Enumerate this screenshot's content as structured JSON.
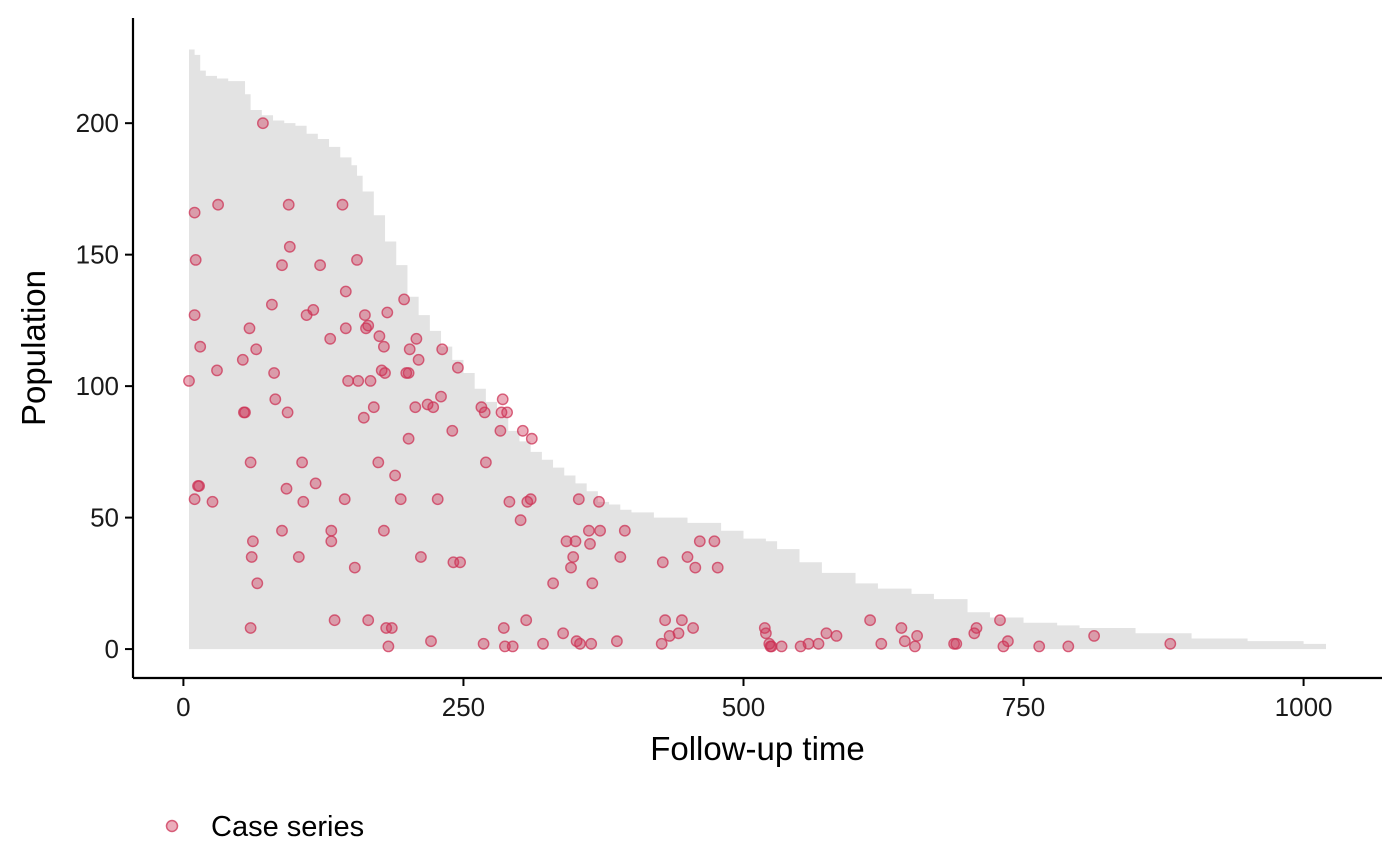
{
  "chart_data": {
    "type": "scatter",
    "title": "",
    "xlabel": "Follow-up time",
    "ylabel": "Population",
    "xlim": [
      -45,
      1070
    ],
    "ylim": [
      -11,
      240
    ],
    "x_ticks": [
      0,
      250,
      500,
      750,
      1000
    ],
    "y_ticks": [
      0,
      50,
      100,
      150,
      200
    ],
    "grid": false,
    "legend_position": "bottom-left",
    "colors": {
      "points": "#cc3355",
      "population_area": "#e3e3e3",
      "axis": "#000000"
    },
    "population_at_risk": {
      "x": [
        5,
        10,
        15,
        20,
        30,
        40,
        50,
        55,
        60,
        70,
        80,
        90,
        100,
        110,
        120,
        130,
        140,
        150,
        155,
        160,
        170,
        180,
        190,
        200,
        210,
        220,
        230,
        240,
        250,
        260,
        270,
        280,
        290,
        300,
        310,
        320,
        330,
        340,
        350,
        360,
        370,
        380,
        390,
        400,
        420,
        450,
        480,
        500,
        520,
        530,
        550,
        570,
        600,
        620,
        650,
        670,
        700,
        720,
        750,
        780,
        800,
        850,
        900,
        950,
        1000,
        1020
      ],
      "y": [
        228,
        226,
        220,
        218,
        217,
        216,
        216,
        211,
        205,
        203,
        201,
        200,
        199,
        196,
        194,
        191,
        187,
        184,
        180,
        174,
        165,
        155,
        146,
        134,
        127,
        121,
        115,
        110,
        105,
        99,
        94,
        88,
        83,
        79,
        75,
        72,
        69,
        66,
        63,
        60,
        56,
        55,
        53,
        52,
        50,
        48,
        45,
        42,
        41,
        38,
        33,
        29,
        25,
        23,
        21,
        19,
        14,
        12,
        10,
        9,
        8,
        6,
        4,
        3,
        2,
        1
      ]
    },
    "series": [
      {
        "name": "Case series",
        "points": [
          [
            5,
            102
          ],
          [
            10,
            166
          ],
          [
            10,
            127
          ],
          [
            11,
            148
          ],
          [
            10,
            57
          ],
          [
            13,
            62
          ],
          [
            14,
            62
          ],
          [
            15,
            115
          ],
          [
            26,
            56
          ],
          [
            30,
            106
          ],
          [
            31,
            169
          ],
          [
            53,
            110
          ],
          [
            54,
            90
          ],
          [
            55,
            90
          ],
          [
            59,
            122
          ],
          [
            60,
            71
          ],
          [
            61,
            35
          ],
          [
            62,
            41
          ],
          [
            60,
            8
          ],
          [
            65,
            114
          ],
          [
            66,
            25
          ],
          [
            71,
            200
          ],
          [
            79,
            131
          ],
          [
            81,
            105
          ],
          [
            82,
            95
          ],
          [
            88,
            146
          ],
          [
            88,
            45
          ],
          [
            92,
            61
          ],
          [
            93,
            90
          ],
          [
            94,
            169
          ],
          [
            95,
            153
          ],
          [
            103,
            35
          ],
          [
            106,
            71
          ],
          [
            107,
            56
          ],
          [
            110,
            127
          ],
          [
            116,
            129
          ],
          [
            118,
            63
          ],
          [
            122,
            146
          ],
          [
            131,
            118
          ],
          [
            132,
            45
          ],
          [
            132,
            41
          ],
          [
            135,
            11
          ],
          [
            142,
            169
          ],
          [
            144,
            57
          ],
          [
            145,
            136
          ],
          [
            145,
            122
          ],
          [
            147,
            102
          ],
          [
            153,
            31
          ],
          [
            155,
            148
          ],
          [
            156,
            102
          ],
          [
            161,
            88
          ],
          [
            162,
            127
          ],
          [
            163,
            122
          ],
          [
            165,
            123
          ],
          [
            165,
            11
          ],
          [
            167,
            102
          ],
          [
            170,
            92
          ],
          [
            174,
            71
          ],
          [
            175,
            119
          ],
          [
            177,
            106
          ],
          [
            179,
            115
          ],
          [
            179,
            45
          ],
          [
            180,
            105
          ],
          [
            181,
            8
          ],
          [
            182,
            128
          ],
          [
            183,
            1
          ],
          [
            186,
            8
          ],
          [
            189,
            66
          ],
          [
            194,
            57
          ],
          [
            197,
            133
          ],
          [
            199,
            105
          ],
          [
            201,
            80
          ],
          [
            201,
            105
          ],
          [
            202,
            114
          ],
          [
            207,
            92
          ],
          [
            208,
            118
          ],
          [
            210,
            110
          ],
          [
            212,
            35
          ],
          [
            218,
            93
          ],
          [
            221,
            3
          ],
          [
            223,
            92
          ],
          [
            227,
            57
          ],
          [
            230,
            96
          ],
          [
            231,
            114
          ],
          [
            240,
            83
          ],
          [
            241,
            33
          ],
          [
            245,
            107
          ],
          [
            247,
            33
          ],
          [
            266,
            92
          ],
          [
            268,
            2
          ],
          [
            269,
            90
          ],
          [
            270,
            71
          ],
          [
            283,
            83
          ],
          [
            284,
            90
          ],
          [
            285,
            95
          ],
          [
            286,
            8
          ],
          [
            287,
            1
          ],
          [
            289,
            90
          ],
          [
            291,
            56
          ],
          [
            294,
            1
          ],
          [
            301,
            49
          ],
          [
            303,
            83
          ],
          [
            306,
            11
          ],
          [
            307,
            56
          ],
          [
            310,
            57
          ],
          [
            311,
            80
          ],
          [
            321,
            2
          ],
          [
            330,
            25
          ],
          [
            339,
            6
          ],
          [
            342,
            41
          ],
          [
            346,
            31
          ],
          [
            348,
            35
          ],
          [
            350,
            41
          ],
          [
            351,
            3
          ],
          [
            353,
            57
          ],
          [
            354,
            2
          ],
          [
            362,
            45
          ],
          [
            363,
            40
          ],
          [
            364,
            2
          ],
          [
            365,
            25
          ],
          [
            371,
            56
          ],
          [
            372,
            45
          ],
          [
            387,
            3
          ],
          [
            390,
            35
          ],
          [
            394,
            45
          ],
          [
            427,
            2
          ],
          [
            428,
            33
          ],
          [
            430,
            11
          ],
          [
            434,
            5
          ],
          [
            442,
            6
          ],
          [
            445,
            11
          ],
          [
            450,
            35
          ],
          [
            455,
            8
          ],
          [
            457,
            31
          ],
          [
            461,
            41
          ],
          [
            474,
            41
          ],
          [
            477,
            31
          ],
          [
            519,
            8
          ],
          [
            520,
            6
          ],
          [
            523,
            2
          ],
          [
            524,
            1
          ],
          [
            525,
            1
          ],
          [
            534,
            1
          ],
          [
            551,
            1
          ],
          [
            558,
            2
          ],
          [
            567,
            2
          ],
          [
            574,
            6
          ],
          [
            583,
            5
          ],
          [
            613,
            11
          ],
          [
            623,
            2
          ],
          [
            641,
            8
          ],
          [
            644,
            3
          ],
          [
            653,
            1
          ],
          [
            655,
            5
          ],
          [
            688,
            2
          ],
          [
            690,
            2
          ],
          [
            706,
            6
          ],
          [
            708,
            8
          ],
          [
            729,
            11
          ],
          [
            732,
            1
          ],
          [
            736,
            3
          ],
          [
            764,
            1
          ],
          [
            790,
            1
          ],
          [
            813,
            5
          ],
          [
            881,
            2
          ]
        ]
      }
    ]
  }
}
